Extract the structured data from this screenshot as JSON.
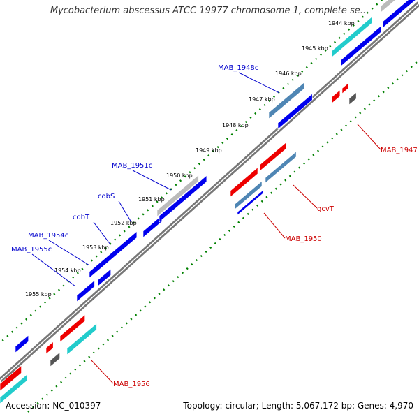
{
  "title": "Mycobacterium abscessus ATCC 19977 chromosome 1, complete se...",
  "footer": {
    "accession": "Accession: NC_010397",
    "summary": "Topology: circular; Length: 5,067,172 bp; Genes: 4,970"
  },
  "colors": {
    "forward_gene": "#0000ee",
    "reverse_gene": "#ee0000",
    "steelblue_gene": "#4f86b4",
    "cyan_gene": "#22cccc",
    "gray_gene": "#bbbbbb",
    "dark_gene": "#555555",
    "backbone": "#777777",
    "tick": "#008000",
    "forward_label": "#0000cc",
    "reverse_label": "#cc0000"
  },
  "ticks": [
    "1944 kbp",
    "1945 kbp",
    "1946 kbp",
    "1947 kbp",
    "1948 kbp",
    "1949 kbp",
    "1950 kbp",
    "1951 kbp",
    "1952 kbp",
    "1953 kbp",
    "1954 kbp",
    "1955 kbp"
  ],
  "forward_labels": [
    "MAB_1948c",
    "MAB_1951c",
    "cobS",
    "cobT",
    "MAB_1954c",
    "MAB_1955c"
  ],
  "reverse_labels": [
    "MAB_1947",
    "gcvT",
    "MAB_1950",
    "MAB_1956"
  ]
}
